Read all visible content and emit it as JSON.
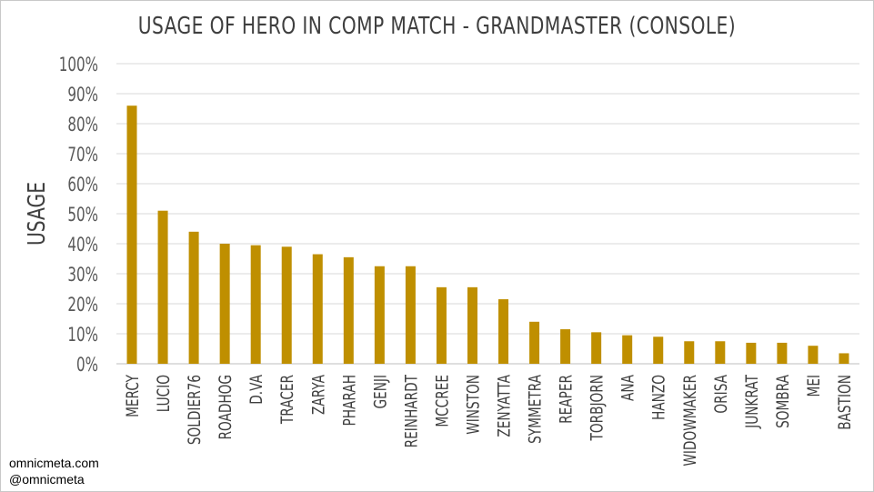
{
  "chart_data": {
    "type": "bar",
    "title": "USAGE OF HERO IN COMP MATCH - GRANDMASTER (CONSOLE)",
    "xlabel": "",
    "ylabel": "USAGE",
    "ylim": [
      0,
      100
    ],
    "yticks": [
      "0%",
      "10%",
      "20%",
      "30%",
      "40%",
      "50%",
      "60%",
      "70%",
      "80%",
      "90%",
      "100%"
    ],
    "grid": true,
    "bar_color": "#bf8f00",
    "categories": [
      "MERCY",
      "LUCIO",
      "SOLDIER76",
      "ROADHOG",
      "D.VA",
      "TRACER",
      "ZARYA",
      "PHARAH",
      "GENJI",
      "REINHARDT",
      "MCCREE",
      "WINSTON",
      "ZENYATTA",
      "SYMMETRA",
      "REAPER",
      "TORBJORN",
      "ANA",
      "HANZO",
      "WIDOWMAKER",
      "ORISA",
      "JUNKRAT",
      "SOMBRA",
      "MEI",
      "BASTION"
    ],
    "values": [
      86,
      51,
      44,
      40,
      39.5,
      39,
      36.5,
      35.5,
      32.5,
      32.5,
      25.5,
      25.5,
      21.5,
      14,
      11.5,
      10.5,
      9.5,
      9,
      7.5,
      7.5,
      7,
      7,
      6,
      3.5
    ]
  },
  "credits": {
    "line1": "omnicmeta.com",
    "line2": "@omnicmeta"
  }
}
